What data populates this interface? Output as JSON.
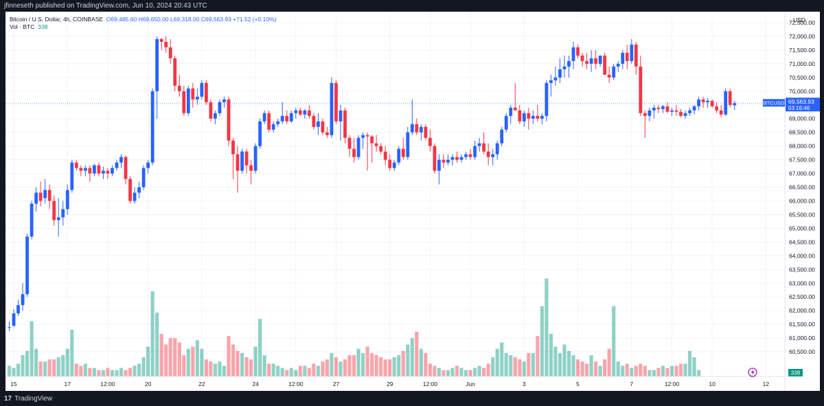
{
  "header": {
    "published": "jfinneseth published on TradingView.com, Jun 10, 2024 20:43 UTC"
  },
  "legend": {
    "symbol": "Bitcoin / U.S. Dollar, 4h, COINBASE",
    "open": "O69,485.60",
    "high": "H69,650.00",
    "low": "L69,318.00",
    "close": "C69,563.93",
    "change": "+71.52 (+0.10%)",
    "vol_label": "Vol · BTC",
    "vol_value": "338"
  },
  "footer": {
    "brand": "TradingView"
  },
  "chart_data": {
    "type": "candlestick",
    "currency": "USD",
    "symbol_label": "BTCUSD",
    "last_price": "69,563.93",
    "countdown": "03:16:46",
    "last_volume": "338",
    "ylim": [
      59600,
      72900
    ],
    "y_ticks": [
      60500,
      61000,
      61500,
      62000,
      62500,
      63000,
      63500,
      64000,
      64500,
      65000,
      65500,
      66000,
      66500,
      67000,
      67500,
      68000,
      68500,
      69000,
      69500,
      70000,
      70500,
      71000,
      71500,
      72000,
      72500
    ],
    "x_ticks": [
      {
        "label": "15",
        "i": 1
      },
      {
        "label": "17",
        "i": 13
      },
      {
        "label": "12:00",
        "i": 22
      },
      {
        "label": "20",
        "i": 31
      },
      {
        "label": "22",
        "i": 43
      },
      {
        "label": "24",
        "i": 55
      },
      {
        "label": "12:00",
        "i": 64
      },
      {
        "label": "27",
        "i": 73
      },
      {
        "label": "29",
        "i": 85
      },
      {
        "label": "12:00",
        "i": 94
      },
      {
        "label": "Jun",
        "i": 103
      },
      {
        "label": "3",
        "i": 115
      },
      {
        "label": "5",
        "i": 127
      },
      {
        "label": "7",
        "i": 139
      },
      {
        "label": "12:00",
        "i": 148
      },
      {
        "label": "10",
        "i": 157
      },
      {
        "label": "12",
        "i": 169
      }
    ],
    "ohlc": [
      [
        61400,
        61600,
        61250,
        61400
      ],
      [
        61450,
        62050,
        61400,
        61900
      ],
      [
        61900,
        62400,
        61800,
        62200
      ],
      [
        62200,
        63000,
        62000,
        62600
      ],
      [
        62600,
        64800,
        62500,
        64700
      ],
      [
        64700,
        66000,
        64600,
        65900
      ],
      [
        65900,
        66500,
        65600,
        66300
      ],
      [
        66300,
        66700,
        65800,
        66000
      ],
      [
        66100,
        66800,
        65900,
        66400
      ],
      [
        66400,
        66600,
        65700,
        66000
      ],
      [
        66000,
        66200,
        65100,
        65300
      ],
      [
        65300,
        66100,
        64700,
        65400
      ],
      [
        65400,
        66000,
        65100,
        65700
      ],
      [
        65700,
        66600,
        65500,
        66400
      ],
      [
        66400,
        67500,
        66300,
        67400
      ],
      [
        67400,
        67500,
        67100,
        67200
      ],
      [
        67200,
        67300,
        66900,
        67100
      ],
      [
        67100,
        67300,
        66900,
        67200
      ],
      [
        67200,
        67300,
        66700,
        67000
      ],
      [
        67000,
        67350,
        66900,
        67300
      ],
      [
        67300,
        67400,
        66900,
        67000
      ],
      [
        67000,
        67250,
        66800,
        67100
      ],
      [
        67100,
        67200,
        66800,
        67000
      ],
      [
        67000,
        67300,
        66900,
        67200
      ],
      [
        67200,
        67500,
        67100,
        67400
      ],
      [
        67400,
        67700,
        67200,
        67600
      ],
      [
        67600,
        67650,
        66600,
        66800
      ],
      [
        66800,
        66900,
        65900,
        66000
      ],
      [
        66000,
        66500,
        65900,
        66300
      ],
      [
        66300,
        66700,
        66100,
        66500
      ],
      [
        66500,
        67300,
        66400,
        67200
      ],
      [
        67200,
        67500,
        67000,
        67400
      ],
      [
        67400,
        70100,
        67300,
        70000
      ],
      [
        70000,
        72000,
        69000,
        71900
      ],
      [
        71900,
        71950,
        71500,
        71800
      ],
      [
        71800,
        72000,
        71400,
        71600
      ],
      [
        71600,
        71900,
        71000,
        71200
      ],
      [
        71200,
        71300,
        70000,
        70200
      ],
      [
        70200,
        70600,
        69800,
        70000
      ],
      [
        70000,
        70200,
        69100,
        69200
      ],
      [
        69200,
        70200,
        69100,
        70100
      ],
      [
        70100,
        70300,
        69400,
        69700
      ],
      [
        69700,
        70100,
        69500,
        69800
      ],
      [
        69800,
        70400,
        69700,
        70300
      ],
      [
        70300,
        70400,
        69500,
        69600
      ],
      [
        69600,
        69700,
        68900,
        69000
      ],
      [
        69000,
        69300,
        68800,
        69200
      ],
      [
        69200,
        69700,
        69100,
        69600
      ],
      [
        69600,
        69800,
        69400,
        69700
      ],
      [
        69700,
        69800,
        68000,
        68200
      ],
      [
        68200,
        68300,
        66800,
        67700
      ],
      [
        67700,
        68000,
        66300,
        67100
      ],
      [
        67100,
        67900,
        67000,
        67800
      ],
      [
        67800,
        67900,
        67000,
        67300
      ],
      [
        67300,
        67500,
        66600,
        67100
      ],
      [
        67100,
        68100,
        67000,
        68000
      ],
      [
        68000,
        69000,
        67900,
        68900
      ],
      [
        68900,
        69300,
        68800,
        69200
      ],
      [
        69200,
        69300,
        68500,
        68600
      ],
      [
        68600,
        68900,
        68500,
        68800
      ],
      [
        68800,
        69000,
        68700,
        68900
      ],
      [
        68900,
        69600,
        68800,
        69100
      ],
      [
        69100,
        69300,
        68800,
        68900
      ],
      [
        68900,
        69300,
        68850,
        69200
      ],
      [
        69200,
        69400,
        69000,
        69300
      ],
      [
        69300,
        69400,
        69100,
        69150
      ],
      [
        69150,
        69350,
        69000,
        69300
      ],
      [
        69300,
        69500,
        69000,
        69100
      ],
      [
        69100,
        69200,
        68600,
        68700
      ],
      [
        68700,
        69200,
        68400,
        68900
      ],
      [
        68900,
        69000,
        68400,
        68500
      ],
      [
        68500,
        68700,
        68300,
        68400
      ],
      [
        68400,
        70500,
        68300,
        70300
      ],
      [
        70300,
        70400,
        68800,
        68900
      ],
      [
        68900,
        69500,
        68200,
        69300
      ],
      [
        69300,
        69400,
        68100,
        68300
      ],
      [
        68300,
        68400,
        67600,
        67900
      ],
      [
        67900,
        68300,
        67400,
        67600
      ],
      [
        67600,
        68400,
        67500,
        68300
      ],
      [
        68300,
        68500,
        67900,
        68400
      ],
      [
        68400,
        68500,
        67100,
        68350
      ],
      [
        68350,
        68400,
        67400,
        68100
      ],
      [
        68100,
        68400,
        67800,
        68000
      ],
      [
        68000,
        68100,
        67700,
        67800
      ],
      [
        67800,
        68000,
        67300,
        67500
      ],
      [
        67500,
        67700,
        67100,
        67200
      ],
      [
        67200,
        67500,
        67100,
        67400
      ],
      [
        67400,
        68000,
        67300,
        67900
      ],
      [
        67900,
        68300,
        67500,
        67600
      ],
      [
        67600,
        68700,
        67500,
        68500
      ],
      [
        68500,
        69700,
        68400,
        68800
      ],
      [
        68800,
        69000,
        68400,
        68500
      ],
      [
        68500,
        68800,
        68200,
        68700
      ],
      [
        68700,
        68800,
        68200,
        68300
      ],
      [
        68300,
        68600,
        67800,
        68000
      ],
      [
        68000,
        68100,
        67000,
        67100
      ],
      [
        67100,
        67700,
        66600,
        67500
      ],
      [
        67500,
        67700,
        67200,
        67400
      ],
      [
        67400,
        67700,
        67300,
        67500
      ],
      [
        67500,
        67700,
        67300,
        67600
      ],
      [
        67600,
        67800,
        67400,
        67500
      ],
      [
        67500,
        67700,
        67400,
        67600
      ],
      [
        67600,
        67800,
        67500,
        67700
      ],
      [
        67700,
        67900,
        67500,
        67600
      ],
      [
        67600,
        68200,
        67500,
        68000
      ],
      [
        68000,
        68300,
        67800,
        68100
      ],
      [
        68100,
        68500,
        67700,
        67800
      ],
      [
        67800,
        68100,
        67300,
        67600
      ],
      [
        67600,
        67900,
        67300,
        67700
      ],
      [
        67700,
        68200,
        67500,
        68100
      ],
      [
        68100,
        68700,
        68000,
        68600
      ],
      [
        68600,
        69200,
        68500,
        69100
      ],
      [
        69100,
        69500,
        68800,
        69400
      ],
      [
        69400,
        70300,
        69300,
        69300
      ],
      [
        69300,
        69500,
        68800,
        68900
      ],
      [
        68900,
        69300,
        68700,
        69200
      ],
      [
        69200,
        69400,
        68600,
        69000
      ],
      [
        69000,
        69300,
        68800,
        69100
      ],
      [
        69100,
        69500,
        68900,
        69000
      ],
      [
        69000,
        69200,
        68800,
        69100
      ],
      [
        69100,
        70400,
        68900,
        70300
      ],
      [
        70300,
        70600,
        69800,
        70400
      ],
      [
        70400,
        70900,
        70200,
        70500
      ],
      [
        70500,
        71200,
        70300,
        70800
      ],
      [
        70800,
        71300,
        70500,
        70900
      ],
      [
        70900,
        71300,
        70500,
        71100
      ],
      [
        71100,
        71800,
        70800,
        71600
      ],
      [
        71600,
        71700,
        71200,
        71300
      ],
      [
        71300,
        71400,
        70900,
        71100
      ],
      [
        71100,
        71400,
        70800,
        71000
      ],
      [
        71000,
        71500,
        70700,
        71200
      ],
      [
        71200,
        71500,
        70800,
        71000
      ],
      [
        71000,
        71300,
        70900,
        71300
      ],
      [
        71300,
        71400,
        70600,
        70600
      ],
      [
        70600,
        70900,
        70300,
        70500
      ],
      [
        70500,
        71000,
        70400,
        70900
      ],
      [
        70900,
        71100,
        70700,
        71000
      ],
      [
        71000,
        71500,
        70800,
        71400
      ],
      [
        71400,
        71700,
        70800,
        71100
      ],
      [
        71100,
        71900,
        71000,
        71700
      ],
      [
        71700,
        71800,
        70600,
        70900
      ],
      [
        70900,
        71300,
        69100,
        69200
      ],
      [
        69200,
        69300,
        68300,
        69100
      ],
      [
        69100,
        69400,
        68900,
        69300
      ],
      [
        69300,
        69500,
        69000,
        69400
      ],
      [
        69400,
        69500,
        69200,
        69350
      ],
      [
        69350,
        69500,
        69200,
        69450
      ],
      [
        69450,
        69600,
        69200,
        69250
      ],
      [
        69250,
        69400,
        69100,
        69300
      ],
      [
        69300,
        69500,
        69100,
        69250
      ],
      [
        69250,
        69350,
        69050,
        69100
      ],
      [
        69100,
        69300,
        69000,
        69200
      ],
      [
        69200,
        69400,
        69100,
        69300
      ],
      [
        69300,
        69500,
        69150,
        69450
      ],
      [
        69450,
        69800,
        69300,
        69700
      ],
      [
        69700,
        69800,
        69400,
        69600
      ],
      [
        69600,
        69750,
        69400,
        69650
      ],
      [
        69650,
        69700,
        69400,
        69450
      ],
      [
        69450,
        69600,
        69200,
        69300
      ],
      [
        69300,
        69500,
        69050,
        69150
      ],
      [
        69150,
        70100,
        69100,
        70000
      ],
      [
        70000,
        70100,
        69400,
        69500
      ],
      [
        69485.6,
        69650,
        69318,
        69563.93
      ]
    ],
    "volume": [
      5,
      4,
      6,
      10,
      12,
      26,
      13,
      7,
      7,
      8,
      8,
      9,
      10,
      13,
      22,
      6,
      5,
      6,
      4,
      4,
      3,
      3,
      4,
      3,
      3,
      4,
      3,
      4,
      5,
      6,
      9,
      14,
      40,
      30,
      20,
      15,
      18,
      18,
      16,
      10,
      13,
      14,
      17,
      13,
      8,
      7,
      6,
      7,
      5,
      19,
      15,
      12,
      11,
      9,
      8,
      14,
      27,
      10,
      6,
      6,
      5,
      4,
      3,
      4,
      3,
      5,
      5,
      4,
      6,
      5,
      7,
      8,
      11,
      9,
      7,
      8,
      10,
      10,
      13,
      11,
      14,
      11,
      10,
      9,
      8,
      8,
      9,
      10,
      12,
      15,
      18,
      21,
      13,
      11,
      6,
      5,
      4,
      3,
      3,
      4,
      5,
      4,
      3,
      3,
      4,
      5,
      4,
      6,
      9,
      13,
      16,
      11,
      10,
      9,
      8,
      7,
      11,
      11,
      19,
      33,
      46,
      20,
      14,
      11,
      15,
      12,
      10,
      8,
      7,
      6,
      10,
      7,
      5,
      8,
      13,
      33,
      7,
      5,
      6,
      4,
      5,
      6,
      5,
      3,
      3,
      4,
      5,
      4,
      5,
      5,
      6,
      6,
      12,
      9,
      3
    ]
  }
}
